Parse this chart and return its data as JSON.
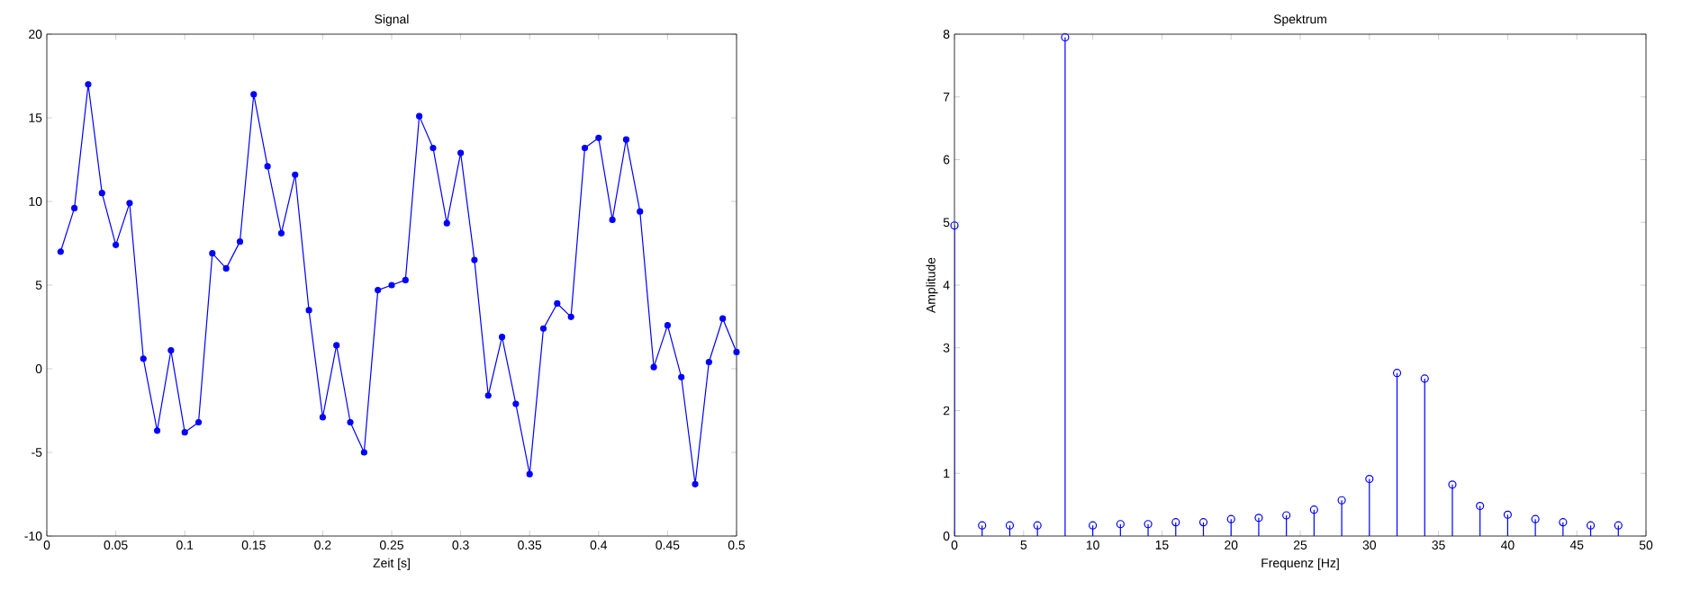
{
  "chart_data": [
    {
      "type": "line",
      "title": "Signal",
      "xlabel": "Zeit [s]",
      "x": [
        0.01,
        0.02,
        0.03,
        0.04,
        0.05,
        0.06,
        0.07,
        0.08,
        0.09,
        0.1,
        0.11,
        0.12,
        0.13,
        0.14,
        0.15,
        0.16,
        0.17,
        0.18,
        0.19,
        0.2,
        0.21,
        0.22,
        0.23,
        0.24,
        0.25,
        0.26,
        0.27,
        0.28,
        0.29,
        0.3,
        0.31,
        0.32,
        0.33,
        0.34,
        0.35,
        0.36,
        0.37,
        0.38,
        0.39,
        0.4,
        0.41,
        0.42,
        0.43,
        0.44,
        0.45,
        0.46,
        0.47,
        0.48,
        0.49,
        0.5
      ],
      "values": [
        7,
        9.6,
        17,
        10.5,
        7.4,
        9.9,
        0.6,
        -3.7,
        1.1,
        -3.8,
        -3.2,
        6.9,
        6.0,
        7.6,
        16.4,
        12.1,
        8.1,
        11.6,
        3.5,
        -2.9,
        1.4,
        -3.2,
        -5.0,
        4.7,
        5.0,
        5.3,
        15.1,
        13.2,
        8.7,
        12.9,
        6.5,
        -1.6,
        1.9,
        -2.1,
        -6.3,
        2.4,
        3.9,
        3.1,
        13.2,
        13.8,
        8.9,
        13.7,
        9.4,
        0.1,
        2.6,
        -0.5,
        -6.9,
        0.4,
        3.0,
        1.0
      ],
      "color": "#0000ff",
      "marker": "circle",
      "line_style": "solid",
      "xlim": [
        0,
        0.5
      ],
      "xticks": [
        0,
        0.05,
        0.1,
        0.15,
        0.2,
        0.25,
        0.3,
        0.35,
        0.4,
        0.45,
        0.5
      ],
      "ylim": [
        -10,
        20
      ],
      "yticks": [
        -10,
        -5,
        0,
        5,
        10,
        15,
        20
      ]
    },
    {
      "type": "lollipop",
      "title": "Spektrum",
      "xlabel": "Frequenz [Hz]",
      "ylabel": "Amplitude",
      "x": [
        0,
        2,
        4,
        6,
        8,
        10,
        12,
        14,
        16,
        18,
        20,
        22,
        24,
        26,
        28,
        30,
        32,
        34,
        36,
        38,
        40,
        42,
        44,
        46,
        48
      ],
      "values": [
        4.95,
        0.17,
        0.17,
        0.17,
        7.95,
        0.17,
        0.19,
        0.19,
        0.22,
        0.22,
        0.27,
        0.29,
        0.33,
        0.42,
        0.57,
        0.91,
        2.6,
        2.51,
        0.82,
        0.48,
        0.34,
        0.27,
        0.22,
        0.17,
        0.17
      ],
      "color": "#0000ff",
      "marker": "circle",
      "xlim": [
        0,
        50
      ],
      "xticks": [
        0,
        5,
        10,
        15,
        20,
        25,
        30,
        35,
        40,
        45,
        50
      ],
      "ylim": [
        0,
        8
      ],
      "yticks": [
        0,
        1,
        2,
        3,
        4,
        5,
        6,
        7,
        8
      ]
    }
  ]
}
